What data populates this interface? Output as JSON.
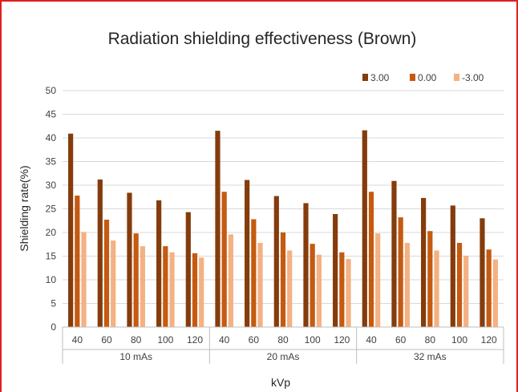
{
  "chart_data": {
    "type": "bar",
    "title": "Radiation shielding effectiveness (Brown)",
    "xlabel": "kVp",
    "ylabel": "Shielding rate(%)",
    "ylim": [
      0,
      50
    ],
    "yticks": [
      0,
      5,
      10,
      15,
      20,
      25,
      30,
      35,
      40,
      45,
      50
    ],
    "grid": true,
    "legend_position": "top-right",
    "groups": [
      {
        "label": "10 mAs",
        "categories": [
          "40",
          "60",
          "80",
          "100",
          "120"
        ]
      },
      {
        "label": "20 mAs",
        "categories": [
          "40",
          "60",
          "80",
          "100",
          "120"
        ]
      },
      {
        "label": "32 mAs",
        "categories": [
          "40",
          "60",
          "80",
          "100",
          "120"
        ]
      }
    ],
    "series": [
      {
        "name": "3.00",
        "color": "#843c0c",
        "values": [
          40.9,
          31.2,
          28.4,
          26.8,
          24.3,
          41.5,
          31.1,
          27.7,
          26.2,
          23.9,
          41.6,
          30.9,
          27.3,
          25.7,
          23.0
        ]
      },
      {
        "name": "0.00",
        "color": "#c55a11",
        "values": [
          27.8,
          22.7,
          19.8,
          17.1,
          15.6,
          28.6,
          22.8,
          20.0,
          17.6,
          15.8,
          28.6,
          23.2,
          20.3,
          17.8,
          16.4
        ]
      },
      {
        "name": "-3.00",
        "color": "#f4b183",
        "values": [
          20.1,
          18.3,
          17.1,
          15.8,
          14.7,
          19.6,
          17.8,
          16.2,
          15.3,
          14.4,
          19.8,
          17.8,
          16.2,
          15.1,
          14.3
        ]
      }
    ]
  }
}
